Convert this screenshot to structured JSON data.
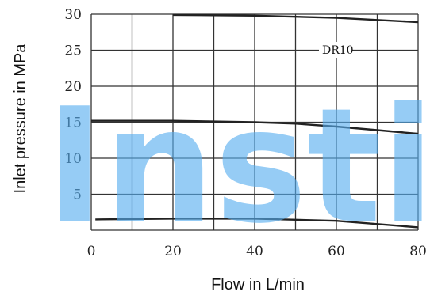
{
  "chart_data": {
    "type": "line",
    "xlabel": "Flow in L/min",
    "ylabel": "Inlet pressure in MPa",
    "xlim": [
      0,
      80
    ],
    "ylim": [
      0,
      30
    ],
    "x_ticks": [
      0,
      20,
      40,
      60,
      80
    ],
    "y_ticks": [
      5,
      10,
      15,
      20,
      25,
      30
    ],
    "y_tick_labels_shown": [
      "5",
      "10",
      "15",
      "20",
      "25",
      "30"
    ],
    "grid": true,
    "annotation": "DR10",
    "watermark": "Insti",
    "series": [
      {
        "x": [
          20,
          40,
          60,
          70,
          80
        ],
        "y": [
          29.9,
          29.8,
          29.5,
          29.2,
          28.9
        ]
      },
      {
        "x": [
          0,
          20,
          40,
          50,
          60,
          70,
          80
        ],
        "y": [
          15.2,
          15.2,
          15.0,
          14.8,
          14.4,
          13.9,
          13.4
        ]
      },
      {
        "x": [
          1,
          20,
          40,
          60,
          80
        ],
        "y": [
          1.5,
          1.6,
          1.6,
          1.3,
          0.4
        ]
      }
    ],
    "colors": {
      "line": "#222222",
      "grid": "#333333",
      "watermark": "#56aef0"
    }
  }
}
